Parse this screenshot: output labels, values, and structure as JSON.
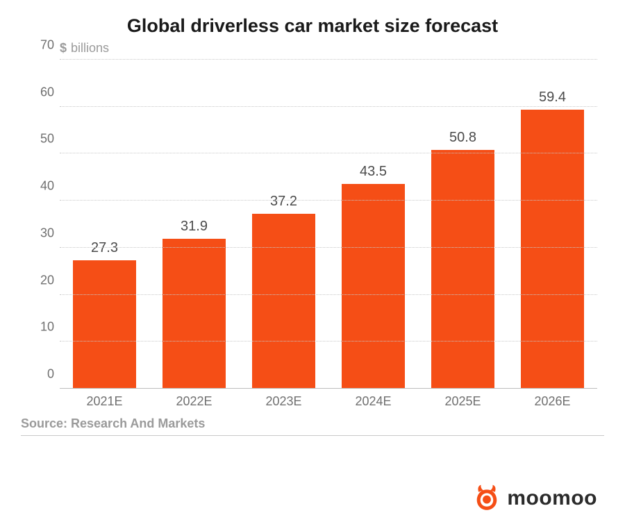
{
  "chart": {
    "type": "bar",
    "title": "Global driverless car market size forecast",
    "title_fontsize": 27,
    "title_color": "#1a1a1a",
    "y_unit_symbol": "$",
    "y_unit_word": "billions",
    "subtitle_fontsize": 18,
    "subtitle_color": "#9a9a9a",
    "categories": [
      "2021E",
      "2022E",
      "2023E",
      "2024E",
      "2025E",
      "2026E"
    ],
    "values": [
      27.3,
      31.9,
      37.2,
      43.5,
      50.8,
      59.4
    ],
    "value_labels": [
      "27.3",
      "31.9",
      "37.2",
      "43.5",
      "50.8",
      "59.4"
    ],
    "bar_color": "#f54e16",
    "ylim": [
      0,
      70
    ],
    "ytick_step": 10,
    "yticks": [
      0,
      10,
      20,
      30,
      40,
      50,
      60,
      70
    ],
    "grid_color": "#c8c8c8",
    "baseline_color": "#bdbdbd",
    "background_color": "#ffffff",
    "axis_label_color": "#6f6f6f",
    "axis_label_fontsize": 18,
    "value_label_fontsize": 20,
    "value_label_color": "#4a4a4a",
    "bar_width_ratio": 0.7
  },
  "source": {
    "text": "Source: Research And Markets",
    "fontsize": 18,
    "color": "#9a9a9a"
  },
  "brand": {
    "name": "moomoo",
    "fontsize": 30,
    "text_color": "#2b2b2b",
    "icon_color": "#f54e16",
    "icon_name": "bull-icon"
  }
}
